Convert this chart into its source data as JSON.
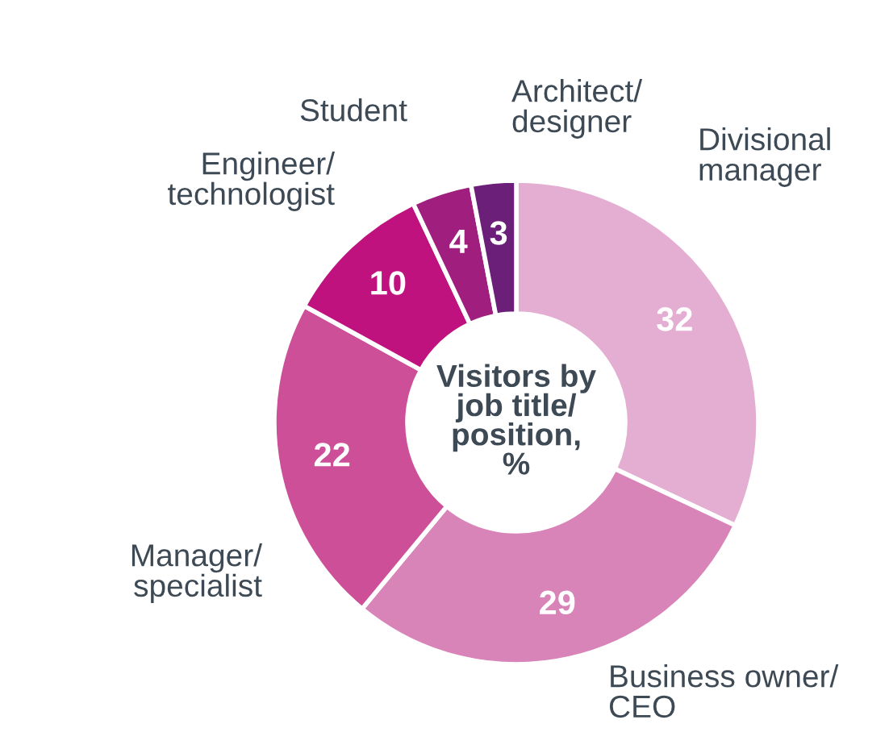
{
  "chart_data": {
    "type": "donut",
    "title": "Visitors by job title/ position, %",
    "categories": [
      "Divisional manager",
      "Business owner/ CEO",
      "Manager/ specialist",
      "Engineer/ technologist",
      "Student",
      "Architect/ designer"
    ],
    "values": [
      32,
      29,
      22,
      10,
      4,
      3
    ],
    "colors": [
      "#e4aed2",
      "#d884b8",
      "#cc4f98",
      "#c0127f",
      "#a01e7e",
      "#6b1f78"
    ],
    "data_labels": true
  }
}
